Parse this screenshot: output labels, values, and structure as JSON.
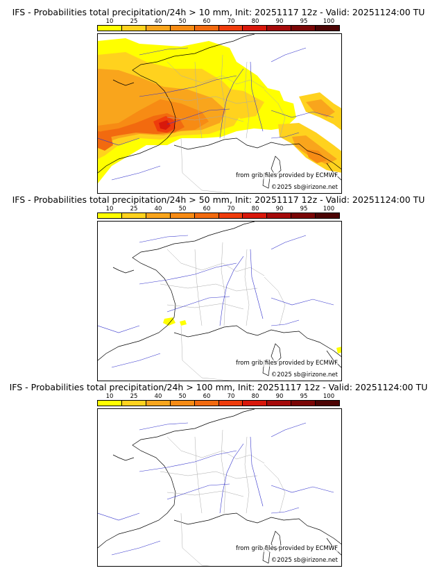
{
  "scale": {
    "labels": [
      "10",
      "25",
      "40",
      "50",
      "60",
      "70",
      "80",
      "90",
      "95",
      "100"
    ],
    "colors": [
      "#ffff00",
      "#ffd21e",
      "#f9a51c",
      "#f78b14",
      "#f26a0f",
      "#ef3c0c",
      "#d8180b",
      "#a50a0a",
      "#7a0606",
      "#4c0404"
    ]
  },
  "panels": [
    {
      "title": "IFS - Probabilities total precipitation/24h > 10 mm, Init: 20251117 12z - Valid: 20251124:00 TU",
      "threshold_mm": 10,
      "credit_source": "from grib files provided by ECMWF",
      "credit_copyright": "©2025 sb@irizone.net"
    },
    {
      "title": "IFS - Probabilities total precipitation/24h > 50 mm, Init: 20251117 12z - Valid: 20251124:00 TU",
      "threshold_mm": 50,
      "credit_source": "from grib files provided by ECMWF",
      "credit_copyright": "©2025 sb@irizone.net"
    },
    {
      "title": "IFS - Probabilities total precipitation/24h > 100 mm, Init: 20251117 12z - Valid: 20251124:00 TU",
      "threshold_mm": 100,
      "credit_source": "from grib files provided by ECMWF",
      "credit_copyright": "©2025 sb@irizone.net"
    }
  ],
  "colors": {
    "coastline": "#000000",
    "borders": "#aaaaaa",
    "rivers": "#3333cc"
  }
}
